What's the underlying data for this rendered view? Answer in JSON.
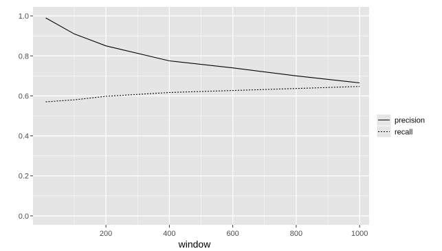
{
  "chart_data": {
    "type": "line",
    "title": "",
    "xlabel": "window",
    "ylabel": "",
    "xlim": [
      -30,
      1030
    ],
    "ylim": [
      -0.045,
      1.045
    ],
    "x_ticks": [
      200,
      400,
      600,
      800,
      1000
    ],
    "y_ticks": [
      0.0,
      0.2,
      0.4,
      0.6,
      0.8,
      1.0
    ],
    "x_tick_labels": [
      "200",
      "400",
      "600",
      "800",
      "1000"
    ],
    "y_tick_labels": [
      "0.0",
      "0.2",
      "0.4",
      "0.6",
      "0.8",
      "1.0"
    ],
    "grid": true,
    "legend_position": "right",
    "series": [
      {
        "name": "precision",
        "line_style": "solid",
        "color": "#000000",
        "x": [
          10,
          100,
          200,
          400,
          600,
          800,
          1000
        ],
        "y": [
          0.99,
          0.91,
          0.85,
          0.775,
          0.74,
          0.7,
          0.665
        ]
      },
      {
        "name": "recall",
        "line_style": "dotted",
        "color": "#000000",
        "x": [
          10,
          100,
          200,
          400,
          600,
          800,
          1000
        ],
        "y": [
          0.57,
          0.58,
          0.598,
          0.617,
          0.627,
          0.637,
          0.647
        ]
      }
    ],
    "panel_color": "#e5e5e5",
    "grid_color": "#ffffff"
  }
}
